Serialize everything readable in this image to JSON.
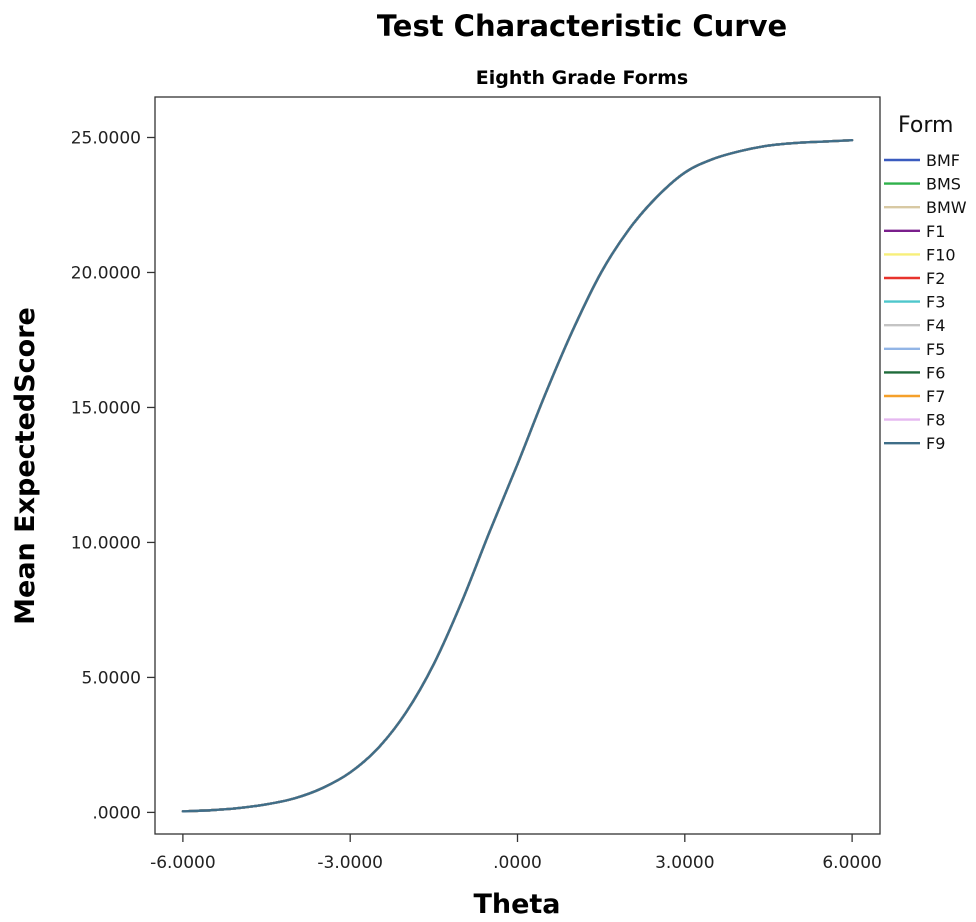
{
  "chart_data": {
    "type": "line",
    "title": "Test Characteristic Curve",
    "subtitle": "Eighth Grade Forms",
    "xlabel": "Theta",
    "ylabel": "Mean ExpectedScore",
    "xlim": [
      -6.5,
      6.5
    ],
    "ylim": [
      -0.8,
      26.5
    ],
    "x_ticks": [
      -6,
      -3,
      0,
      3,
      6
    ],
    "x_tick_labels": [
      "-6.0000",
      "-3.0000",
      ".0000",
      "3.0000",
      "6.0000"
    ],
    "y_ticks": [
      0,
      5,
      10,
      15,
      20,
      25
    ],
    "y_tick_labels": [
      ".0000",
      "5.0000",
      "10.0000",
      "15.0000",
      "20.0000",
      "25.0000"
    ],
    "grid": false,
    "legend_title": "Form",
    "legend_position": "right",
    "x": [
      -6,
      -5.5,
      -5,
      -4.5,
      -4,
      -3.5,
      -3,
      -2.5,
      -2,
      -1.5,
      -1,
      -0.5,
      0,
      0.5,
      1,
      1.5,
      2,
      2.5,
      3,
      3.5,
      4,
      4.5,
      5,
      5.5,
      6
    ],
    "series": [
      {
        "name": "BMF",
        "color": "#3a5bbf",
        "values": [
          0.04,
          0.08,
          0.16,
          0.3,
          0.52,
          0.9,
          1.48,
          2.38,
          3.7,
          5.5,
          7.8,
          10.4,
          12.9,
          15.5,
          17.9,
          20.0,
          21.6,
          22.8,
          23.7,
          24.2,
          24.5,
          24.7,
          24.8,
          24.85,
          24.9
        ]
      },
      {
        "name": "BMS",
        "color": "#2fb14a",
        "values": [
          0.04,
          0.08,
          0.16,
          0.3,
          0.52,
          0.9,
          1.48,
          2.38,
          3.7,
          5.5,
          7.8,
          10.4,
          12.9,
          15.5,
          17.9,
          20.0,
          21.6,
          22.8,
          23.7,
          24.2,
          24.5,
          24.7,
          24.8,
          24.85,
          24.9
        ]
      },
      {
        "name": "BMW",
        "color": "#d8c9a3",
        "values": [
          0.04,
          0.08,
          0.16,
          0.3,
          0.52,
          0.9,
          1.48,
          2.38,
          3.7,
          5.5,
          7.8,
          10.4,
          12.9,
          15.5,
          17.9,
          20.0,
          21.6,
          22.8,
          23.7,
          24.2,
          24.5,
          24.7,
          24.8,
          24.85,
          24.9
        ]
      },
      {
        "name": "F1",
        "color": "#7a1f8c",
        "values": [
          0.04,
          0.08,
          0.16,
          0.3,
          0.52,
          0.9,
          1.48,
          2.38,
          3.7,
          5.5,
          7.8,
          10.4,
          12.9,
          15.5,
          17.9,
          20.0,
          21.6,
          22.8,
          23.7,
          24.2,
          24.5,
          24.7,
          24.8,
          24.85,
          24.9
        ]
      },
      {
        "name": "F10",
        "color": "#f7ef7a",
        "values": [
          0.04,
          0.08,
          0.16,
          0.3,
          0.52,
          0.9,
          1.48,
          2.38,
          3.7,
          5.5,
          7.8,
          10.4,
          12.9,
          15.5,
          17.9,
          20.0,
          21.6,
          22.8,
          23.7,
          24.2,
          24.5,
          24.7,
          24.8,
          24.85,
          24.9
        ]
      },
      {
        "name": "F2",
        "color": "#e8332c",
        "values": [
          0.04,
          0.08,
          0.16,
          0.3,
          0.52,
          0.9,
          1.48,
          2.38,
          3.7,
          5.5,
          7.8,
          10.4,
          12.9,
          15.5,
          17.9,
          20.0,
          21.6,
          22.8,
          23.7,
          24.2,
          24.5,
          24.7,
          24.8,
          24.85,
          24.9
        ]
      },
      {
        "name": "F3",
        "color": "#4ec7cc",
        "values": [
          0.04,
          0.08,
          0.16,
          0.3,
          0.52,
          0.9,
          1.48,
          2.38,
          3.7,
          5.5,
          7.8,
          10.4,
          12.9,
          15.5,
          17.9,
          20.0,
          21.6,
          22.8,
          23.7,
          24.2,
          24.5,
          24.7,
          24.8,
          24.85,
          24.9
        ]
      },
      {
        "name": "F4",
        "color": "#c4c4c4",
        "values": [
          0.04,
          0.08,
          0.16,
          0.3,
          0.52,
          0.9,
          1.48,
          2.38,
          3.7,
          5.5,
          7.8,
          10.4,
          12.9,
          15.5,
          17.9,
          20.0,
          21.6,
          22.8,
          23.7,
          24.2,
          24.5,
          24.7,
          24.8,
          24.85,
          24.9
        ]
      },
      {
        "name": "F5",
        "color": "#92b5e6",
        "values": [
          0.04,
          0.08,
          0.16,
          0.3,
          0.52,
          0.9,
          1.48,
          2.38,
          3.7,
          5.5,
          7.8,
          10.4,
          12.9,
          15.5,
          17.9,
          20.0,
          21.6,
          22.8,
          23.7,
          24.2,
          24.5,
          24.7,
          24.8,
          24.85,
          24.9
        ]
      },
      {
        "name": "F6",
        "color": "#1f6b3a",
        "values": [
          0.04,
          0.08,
          0.16,
          0.3,
          0.52,
          0.9,
          1.48,
          2.38,
          3.7,
          5.5,
          7.8,
          10.4,
          12.9,
          15.5,
          17.9,
          20.0,
          21.6,
          22.8,
          23.7,
          24.2,
          24.5,
          24.7,
          24.8,
          24.85,
          24.9
        ]
      },
      {
        "name": "F7",
        "color": "#f5a02a",
        "values": [
          0.04,
          0.08,
          0.16,
          0.3,
          0.52,
          0.9,
          1.48,
          2.38,
          3.7,
          5.5,
          7.8,
          10.4,
          12.9,
          15.5,
          17.9,
          20.0,
          21.6,
          22.8,
          23.7,
          24.2,
          24.5,
          24.7,
          24.8,
          24.85,
          24.9
        ]
      },
      {
        "name": "F8",
        "color": "#e5b8f0",
        "values": [
          0.04,
          0.08,
          0.16,
          0.3,
          0.52,
          0.9,
          1.48,
          2.38,
          3.7,
          5.5,
          7.8,
          10.4,
          12.9,
          15.5,
          17.9,
          20.0,
          21.6,
          22.8,
          23.7,
          24.2,
          24.5,
          24.7,
          24.8,
          24.85,
          24.9
        ]
      },
      {
        "name": "F9",
        "color": "#3f6e88",
        "values": [
          0.04,
          0.08,
          0.16,
          0.3,
          0.52,
          0.9,
          1.48,
          2.38,
          3.7,
          5.5,
          7.8,
          10.4,
          12.9,
          15.5,
          17.9,
          20.0,
          21.6,
          22.8,
          23.7,
          24.2,
          24.5,
          24.7,
          24.8,
          24.85,
          24.9
        ]
      }
    ]
  }
}
